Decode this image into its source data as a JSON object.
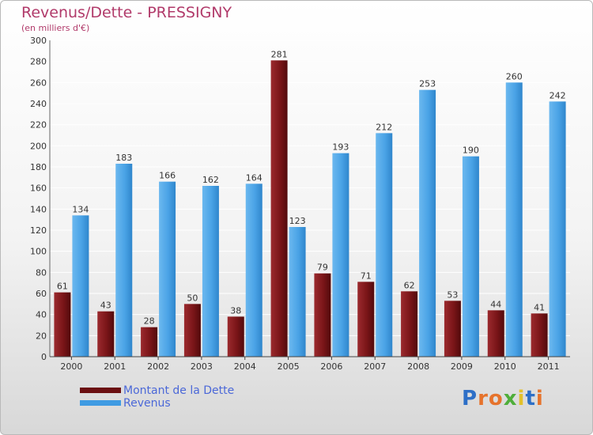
{
  "header": {
    "title": "Revenus/Dette - PRESSIGNY",
    "subtitle": "(en milliers d'€)"
  },
  "chart_data": {
    "type": "bar",
    "categories": [
      "2000",
      "2001",
      "2002",
      "2003",
      "2004",
      "2005",
      "2006",
      "2007",
      "2008",
      "2009",
      "2010",
      "2011"
    ],
    "series": [
      {
        "name": "Montant de la Dette",
        "color": "#7a1518",
        "values": [
          61,
          43,
          28,
          50,
          38,
          281,
          79,
          71,
          62,
          53,
          44,
          41
        ]
      },
      {
        "name": "Revenus",
        "color": "#4aa3e6",
        "values": [
          134,
          183,
          166,
          162,
          164,
          123,
          193,
          212,
          253,
          190,
          260,
          242
        ]
      }
    ],
    "ylim": [
      0,
      300
    ],
    "yticks": [
      0,
      20,
      40,
      60,
      80,
      100,
      120,
      140,
      160,
      180,
      200,
      220,
      240,
      260,
      280,
      300
    ],
    "grid": true,
    "legend_position": "bottom-left",
    "data_labels": true
  },
  "legend": {
    "items": [
      {
        "label": "Montant de la Dette",
        "color": "#6b0f12"
      },
      {
        "label": "Revenus",
        "color": "#3f9be3"
      }
    ]
  },
  "logo": {
    "text": "Proxiti",
    "letters": [
      "P",
      "r",
      "o",
      "x",
      "i",
      "t",
      "i"
    ],
    "colors": [
      "#2d6fc7",
      "#e6732c",
      "#e6732c",
      "#4fae3a",
      "#e3c12b",
      "#2d6fc7",
      "#e6732c"
    ]
  }
}
